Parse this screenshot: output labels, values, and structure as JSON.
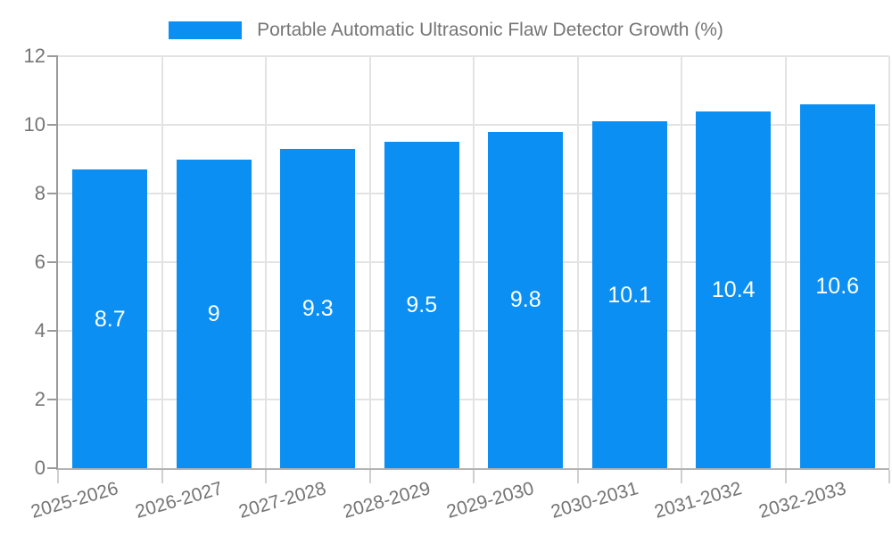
{
  "chart_data": {
    "type": "bar",
    "title": "Portable Automatic Ultrasonic Flaw Detector Growth (%)",
    "xlabel": "",
    "ylabel": "",
    "categories": [
      "2025-2026",
      "2026-2027",
      "2027-2028",
      "2028-2029",
      "2029-2030",
      "2030-2031",
      "2031-2032",
      "2032-2033"
    ],
    "values": [
      8.7,
      9,
      9.3,
      9.5,
      9.8,
      10.1,
      10.4,
      10.6
    ],
    "value_labels": [
      "8.7",
      "9",
      "9.3",
      "9.5",
      "9.8",
      "10.1",
      "10.4",
      "10.6"
    ],
    "ylim": [
      0,
      12
    ],
    "yticks": [
      0,
      2,
      4,
      6,
      8,
      10,
      12
    ],
    "grid": true,
    "legend_position": "top",
    "colors": {
      "bar": "#0b8ff2",
      "bar_label": "#ffffff",
      "axis_text": "#757575",
      "gridline": "#e3e3e3",
      "axis_line": "#9b9b9b",
      "baseline": "#b3b3b3",
      "tick": "#cfcfcf"
    }
  }
}
